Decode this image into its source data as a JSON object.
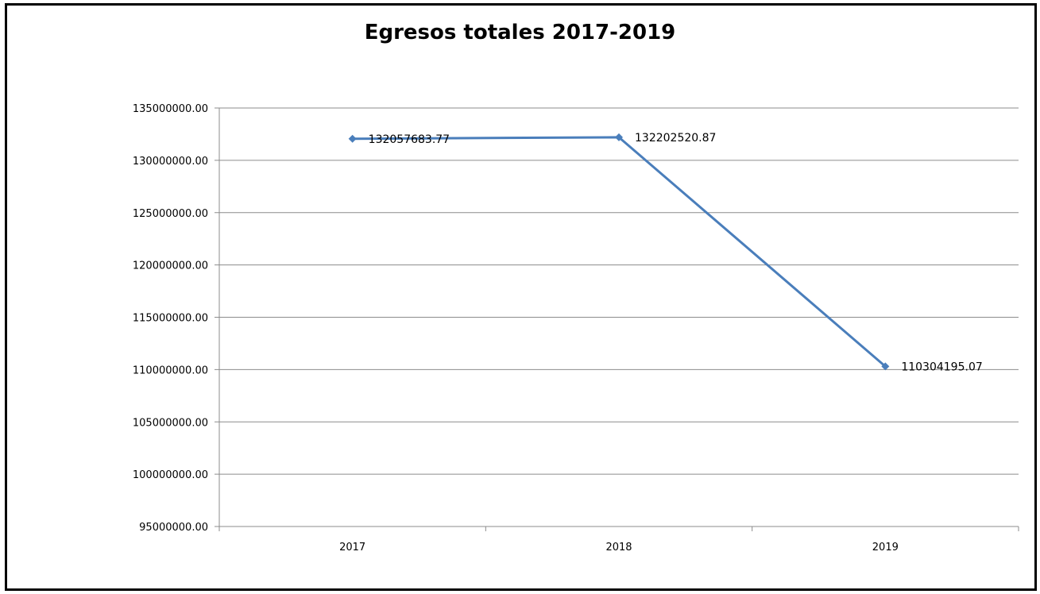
{
  "chart_data": {
    "type": "line",
    "title": "Egresos totales 2017-2019",
    "xlabel": "",
    "ylabel": "",
    "categories": [
      "2017",
      "2018",
      "2019"
    ],
    "series": [
      {
        "values": [
          132057683.77,
          132202520.87,
          110304195.07
        ],
        "data_labels": [
          "132057683.77",
          "132202520.87",
          "110304195.07"
        ]
      }
    ],
    "ylim": [
      95000000,
      135000000
    ],
    "y_ticks": [
      135000000,
      130000000,
      125000000,
      120000000,
      115000000,
      110000000,
      105000000,
      100000000,
      95000000
    ],
    "y_tick_labels": [
      "135000000.00",
      "130000000.00",
      "125000000.00",
      "120000000.00",
      "115000000.00",
      "110000000.00",
      "105000000.00",
      "100000000.00",
      "95000000.00"
    ],
    "grid": true,
    "legend": "none",
    "colors": {
      "line": "#4a7ebb",
      "grid": "#8c8c8c",
      "axis": "#8c8c8c"
    }
  }
}
